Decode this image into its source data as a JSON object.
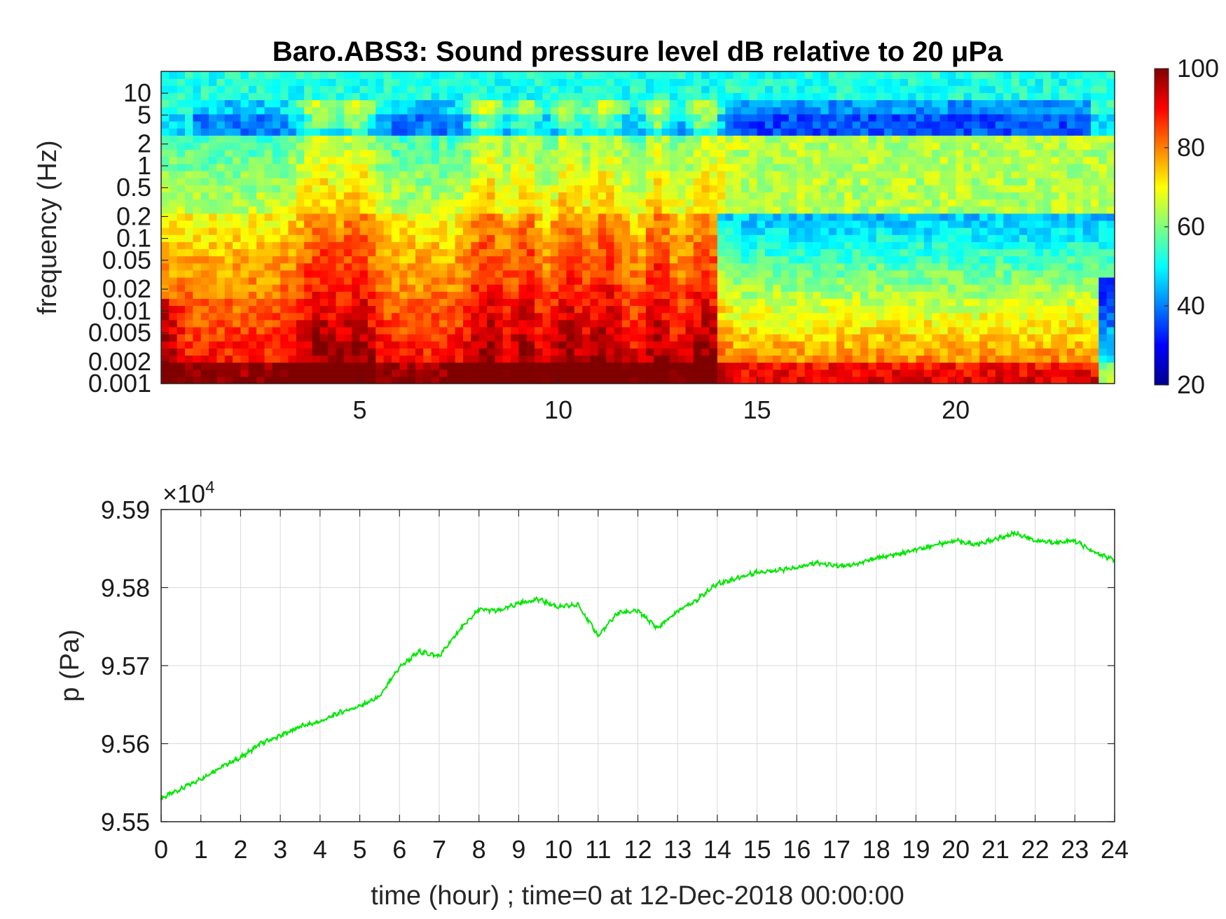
{
  "chart_data": [
    {
      "type": "heatmap",
      "title": "Baro.ABS3: Sound pressure level dB relative to 20 μPa",
      "ylabel": "frequency (Hz)",
      "xlabel": "",
      "xlim": [
        0,
        24
      ],
      "ylim": [
        0.001,
        20
      ],
      "yscale": "log",
      "xticks": [
        5,
        10,
        15,
        20
      ],
      "xtick_labels": [
        "5",
        "10",
        "15",
        "20"
      ],
      "yticks": [
        0.001,
        0.002,
        0.005,
        0.01,
        0.02,
        0.05,
        0.1,
        0.2,
        0.5,
        1,
        2,
        5,
        10
      ],
      "ytick_labels": [
        "0.001",
        "0.002",
        "0.005",
        "0.01",
        "0.02",
        "0.05",
        "0.1",
        "0.2",
        "0.5",
        "1",
        "2",
        "5",
        "10"
      ],
      "colorbar": {
        "range": [
          20,
          100
        ],
        "ticks": [
          20,
          40,
          60,
          80,
          100
        ],
        "tick_labels": [
          "20",
          "40",
          "60",
          "80",
          "100"
        ],
        "colormap": "jet"
      },
      "colormap_stops": [
        "#00008f",
        "#0000ff",
        "#00ffff",
        "#ffff00",
        "#ff0000",
        "#800000"
      ],
      "grid": false
    },
    {
      "type": "line",
      "title": "",
      "xlabel": "time (hour) ; time=0 at 12-Dec-2018 00:00:00",
      "ylabel": "p (Pa)",
      "exponent_label": "×10",
      "exponent_power": "4",
      "xlim": [
        0,
        24
      ],
      "ylim": [
        9.55,
        9.59
      ],
      "xticks": [
        0,
        1,
        2,
        3,
        4,
        5,
        6,
        7,
        8,
        9,
        10,
        11,
        12,
        13,
        14,
        15,
        16,
        17,
        18,
        19,
        20,
        21,
        22,
        23,
        24
      ],
      "xtick_labels": [
        "0",
        "1",
        "2",
        "3",
        "4",
        "5",
        "6",
        "7",
        "8",
        "9",
        "10",
        "11",
        "12",
        "13",
        "14",
        "15",
        "16",
        "17",
        "18",
        "19",
        "20",
        "21",
        "22",
        "23",
        "24"
      ],
      "yticks": [
        9.55,
        9.56,
        9.57,
        9.58,
        9.59
      ],
      "ytick_labels": [
        "9.55",
        "9.56",
        "9.57",
        "9.58",
        "9.59"
      ],
      "grid": true,
      "line_color": "#00e600",
      "series": [
        {
          "x": [
            0,
            0.5,
            1,
            1.5,
            2,
            2.5,
            3,
            3.5,
            4,
            4.5,
            5,
            5.5,
            6,
            6.5,
            7,
            7.5,
            8,
            8.5,
            9,
            9.5,
            10,
            10.5,
            11,
            11.5,
            12,
            12.5,
            13,
            13.5,
            14,
            14.5,
            15,
            15.5,
            16,
            16.5,
            17,
            17.5,
            18,
            18.5,
            19,
            19.5,
            20,
            20.5,
            21,
            21.5,
            22,
            22.5,
            23,
            23.5,
            24
          ],
          "values": [
            9.553,
            9.5542,
            9.5555,
            9.557,
            9.5582,
            9.56,
            9.561,
            9.5622,
            9.5628,
            9.564,
            9.5648,
            9.566,
            9.5698,
            9.5718,
            9.5712,
            9.5745,
            9.5772,
            9.577,
            9.578,
            9.5785,
            9.5775,
            9.5778,
            9.5738,
            9.5768,
            9.577,
            9.5748,
            9.577,
            9.5785,
            9.5805,
            9.5812,
            9.582,
            9.5822,
            9.5825,
            9.5832,
            9.5828,
            9.583,
            9.5838,
            9.5842,
            9.5848,
            9.5855,
            9.586,
            9.5855,
            9.5862,
            9.587,
            9.586,
            9.5858,
            9.586,
            9.5845,
            9.5835
          ]
        }
      ]
    }
  ]
}
